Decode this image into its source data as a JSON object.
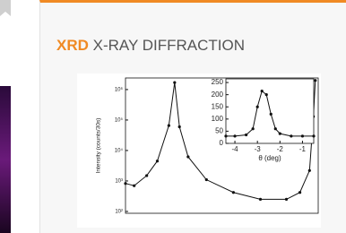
{
  "header": {
    "title_abbr": "XRD",
    "title_rest": "X-RAY DIFFRACTION"
  },
  "chart_data": [
    {
      "type": "line",
      "ylabel": "Intensity (counts/30s)",
      "log_y": true,
      "color": "#111111",
      "x": [
        -8,
        -7.1,
        -5.8,
        -4.7,
        -3.5,
        -2.9,
        -2.4,
        -1.5,
        0.4,
        3.2,
        6,
        8.7,
        10.1,
        11.1,
        11.5,
        11.7
      ],
      "values": [
        830,
        700,
        1500,
        4500,
        66000,
        1700000,
        60000,
        6200,
        1100,
        420,
        250,
        250,
        420,
        2200,
        130000,
        2000000
      ],
      "xlim": [
        -8,
        12
      ],
      "ylim": [
        87,
        2400000
      ],
      "yticks": [
        {
          "value": 1000000,
          "label": "10⁶"
        },
        {
          "value": 100000,
          "label": "10⁵"
        },
        {
          "value": 10000,
          "label": "10⁴"
        },
        {
          "value": 1000,
          "label": "10³"
        },
        {
          "value": 100,
          "label": "10²"
        }
      ]
    },
    {
      "type": "line",
      "xlabel": "θ (deg)",
      "color": "#111111",
      "x": [
        -4.4,
        -4,
        -3.5,
        -3.2,
        -3,
        -2.8,
        -2.6,
        -2.4,
        -2.2,
        -2,
        -1.5,
        -1,
        -0.5
      ],
      "values": [
        30,
        30,
        35,
        60,
        150,
        215,
        200,
        120,
        60,
        40,
        30,
        30,
        30
      ],
      "xlim": [
        -4.4,
        -0.5
      ],
      "ylim": [
        0,
        265
      ],
      "xticks": [
        -4,
        -3,
        -2,
        -1
      ],
      "yticks": [
        0,
        50,
        100,
        150,
        200,
        250
      ]
    }
  ]
}
